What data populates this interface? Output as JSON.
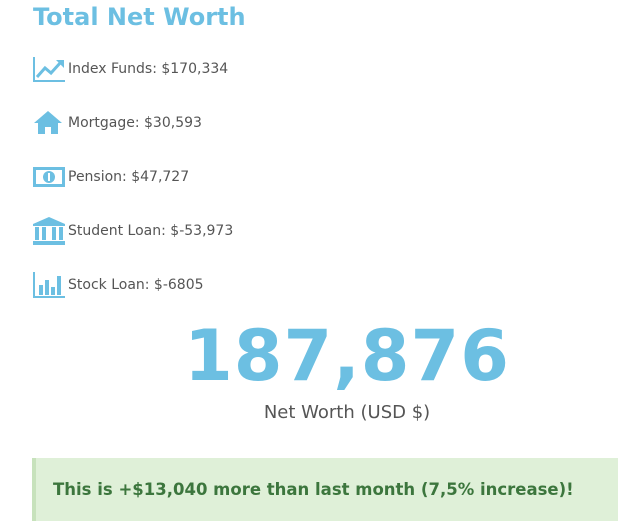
{
  "header": {
    "title": "Total Net Worth"
  },
  "items": [
    {
      "label": "Index Funds: $170,334"
    },
    {
      "label": "Mortgage: $30,593"
    },
    {
      "label": "Pension: $47,727"
    },
    {
      "label": "Student Loan: $-53,973"
    },
    {
      "label": "Stock Loan: $-6805"
    }
  ],
  "summary": {
    "value": "187,876",
    "caption": "Net Worth (USD $)"
  },
  "alert": {
    "text": "This is +$13,040 more than last month (7,5% increase)!"
  }
}
